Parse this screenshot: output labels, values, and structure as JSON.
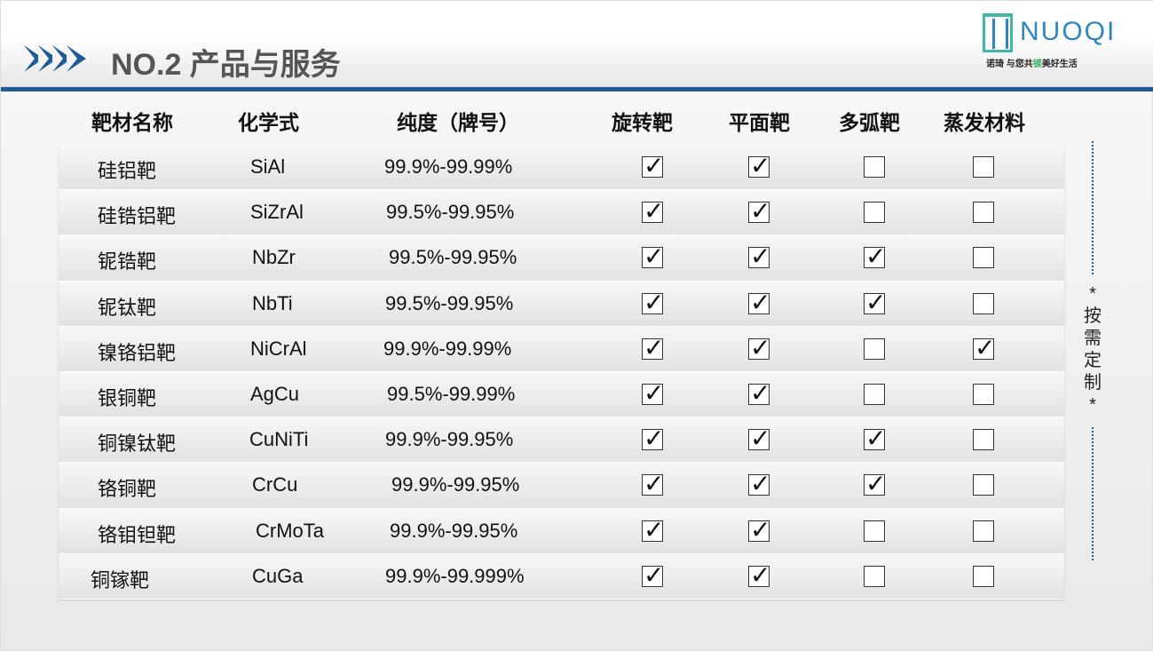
{
  "header": {
    "title": "NO.2  产品与服务",
    "logo_text": "NUOQI",
    "slogan_pre": "诺琦  与您共",
    "slogan_mark": "镀",
    "slogan_post": "美好生活"
  },
  "colors": {
    "accent": "#1f5a96",
    "logo_blue": "#2e86c1",
    "logo_green": "#3fb8a8"
  },
  "columns": [
    "靶材名称",
    "化学式",
    "纯度（牌号）",
    "旋转靶",
    "平面靶",
    "多弧靶",
    "蒸发材料"
  ],
  "rows": [
    {
      "name": "硅铝靶",
      "formula": "SiAl",
      "purity": "99.9%-99.99%",
      "checks": [
        true,
        true,
        false,
        false
      ]
    },
    {
      "name": "硅锆铝靶",
      "formula": "SiZrAl",
      "purity": "99.5%-99.95%",
      "checks": [
        true,
        true,
        false,
        false
      ]
    },
    {
      "name": "铌锆靶",
      "formula": "NbZr",
      "purity": "99.5%-99.95%",
      "checks": [
        true,
        true,
        true,
        false
      ]
    },
    {
      "name": "铌钛靶",
      "formula": "NbTi",
      "purity": "99.5%-99.95%",
      "checks": [
        true,
        true,
        true,
        false
      ]
    },
    {
      "name": "镍铬铝靶",
      "formula": "NiCrAl",
      "purity": "99.9%-99.99%",
      "checks": [
        true,
        true,
        false,
        true
      ]
    },
    {
      "name": "银铜靶",
      "formula": "AgCu",
      "purity": "99.5%-99.99%",
      "checks": [
        true,
        true,
        false,
        false
      ]
    },
    {
      "name": "铜镍钛靶",
      "formula": "CuNiTi",
      "purity": "99.9%-99.95%",
      "checks": [
        true,
        true,
        true,
        false
      ]
    },
    {
      "name": "铬铜靶",
      "formula": "CrCu",
      "purity": "99.9%-99.95%",
      "checks": [
        true,
        true,
        true,
        false
      ]
    },
    {
      "name": "铬钼钽靶",
      "formula": "CrMoTa",
      "purity": "99.9%-99.95%",
      "checks": [
        true,
        true,
        false,
        false
      ]
    },
    {
      "name": "铜镓靶",
      "formula": "CuGa",
      "purity": "99.9%-99.999%",
      "checks": [
        true,
        true,
        false,
        false
      ]
    }
  ],
  "side_note": [
    "*",
    "按",
    "需",
    "定",
    "制",
    "*"
  ]
}
